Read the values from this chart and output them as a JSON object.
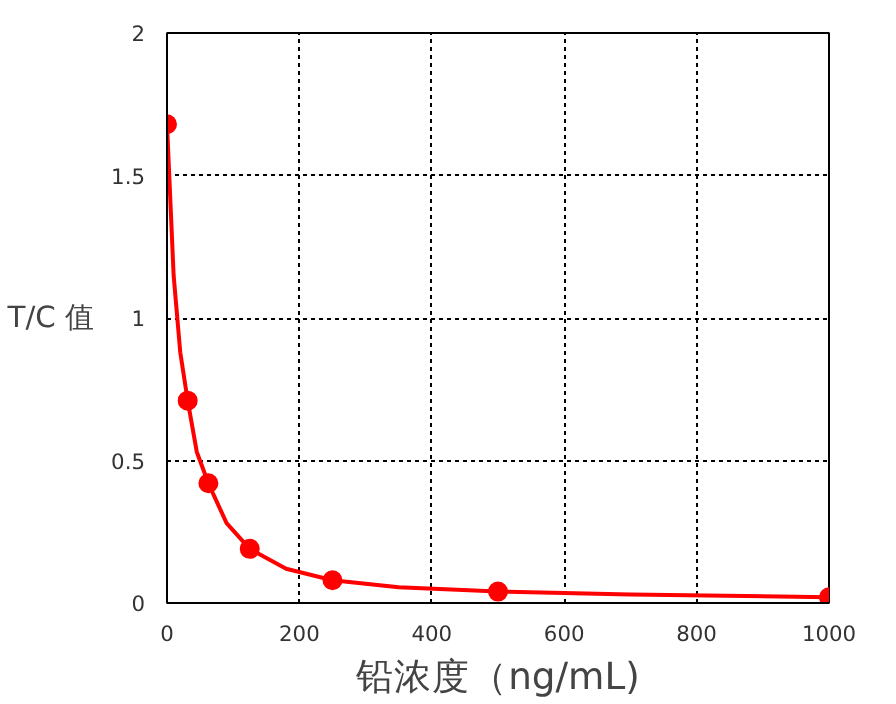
{
  "chart_data": {
    "type": "line",
    "xlabel": "铅浓度（ng/mL)",
    "ylabel": "T/C 值",
    "series": [
      {
        "color": "#ff0000",
        "line_style": "solid",
        "x": [
          0,
          10,
          20,
          31.25,
          45,
          62.5,
          90,
          125,
          180,
          250,
          350,
          500,
          700,
          1000
        ],
        "values": [
          1.68,
          1.15,
          0.88,
          0.71,
          0.53,
          0.42,
          0.28,
          0.19,
          0.12,
          0.08,
          0.055,
          0.04,
          0.03,
          0.02
        ]
      },
      {
        "type": "scatter",
        "marker": "circle",
        "color": "#ff0000",
        "x": [
          0,
          31.25,
          62.5,
          125,
          250,
          500,
          1000
        ],
        "values": [
          1.68,
          0.71,
          0.42,
          0.19,
          0.08,
          0.04,
          0.02
        ]
      }
    ],
    "xlim": [
      0,
      1000
    ],
    "ylim": [
      0,
      2
    ],
    "xticks": [
      0,
      200,
      400,
      600,
      800,
      1000
    ],
    "yticks": [
      0,
      0.5,
      1,
      1.5,
      2
    ],
    "grid": true
  }
}
